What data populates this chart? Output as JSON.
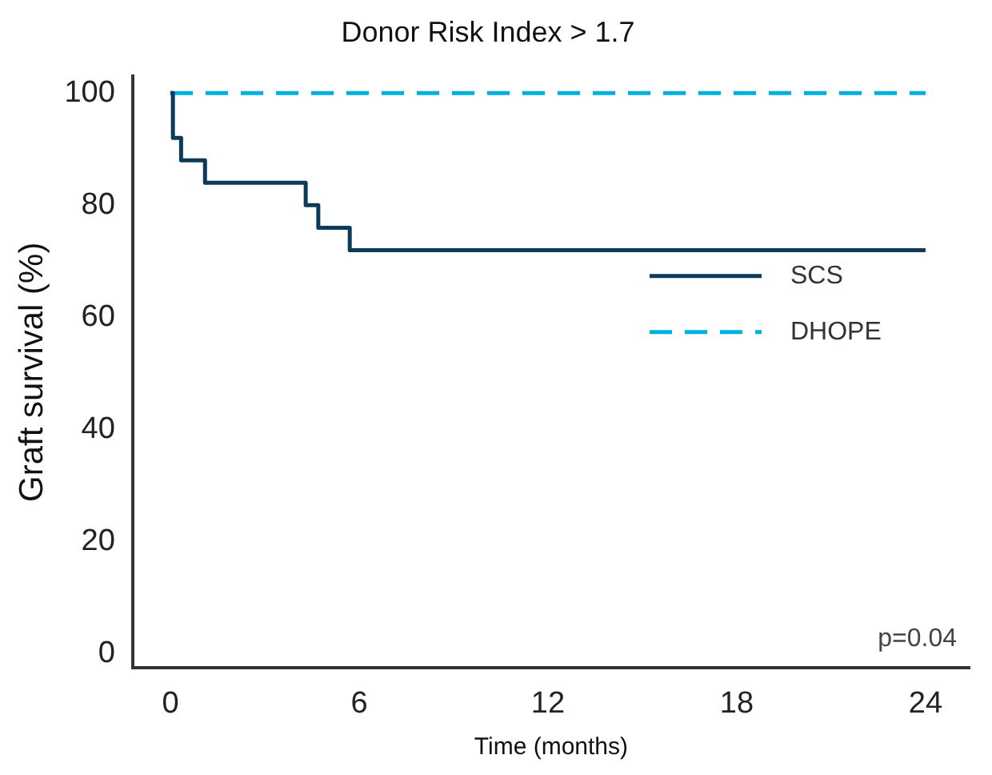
{
  "chart_data": {
    "type": "step",
    "title": "Donor Risk Index > 1.7",
    "xlabel": "Time (months)",
    "ylabel": "Graft survival (%)",
    "xlim": [
      -1.2,
      25.4
    ],
    "xticks": [
      0,
      6,
      12,
      18,
      24
    ],
    "ylim": [
      -2.5,
      103
    ],
    "yticks": [
      0,
      20,
      40,
      60,
      80,
      100
    ],
    "series": [
      {
        "name": "SCS",
        "color": "#0b3a5a",
        "line_style": "solid",
        "x": [
          0,
          0.08,
          0.34,
          1.1,
          4.3,
          4.7,
          5.7,
          24
        ],
        "values": [
          100,
          92,
          88,
          84,
          80,
          76,
          72,
          72
        ]
      },
      {
        "name": "DHOPE",
        "color": "#00b0e0",
        "line_style": "dashed",
        "x": [
          0,
          24
        ],
        "values": [
          100,
          100
        ]
      }
    ],
    "legend": "right",
    "grid": false,
    "marker": "none",
    "annotations": [
      "p=0.04"
    ]
  }
}
